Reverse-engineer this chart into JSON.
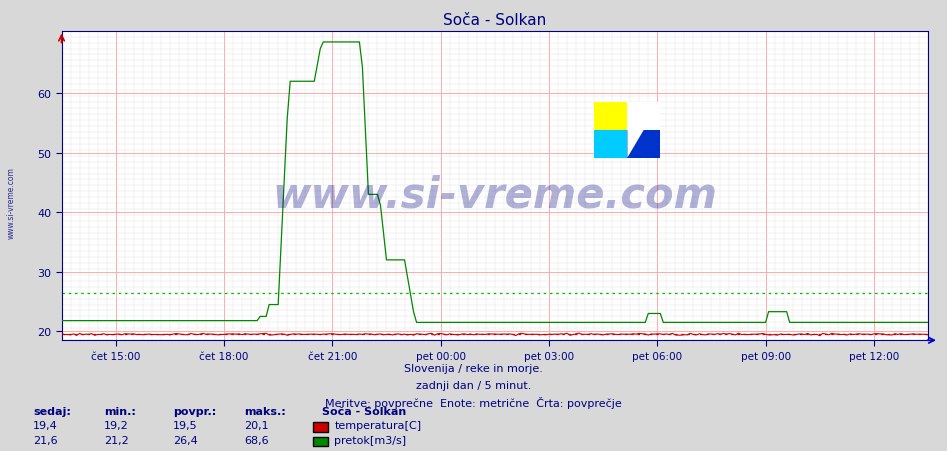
{
  "title": "Soča - Solkan",
  "title_color": "#000080",
  "background_color": "#d8d8d8",
  "plot_bg_color": "#ffffff",
  "x_labels": [
    "čet 15:00",
    "čet 18:00",
    "čet 21:00",
    "pet 00:00",
    "pet 03:00",
    "pet 06:00",
    "pet 09:00",
    "pet 12:00"
  ],
  "ylim_min": 18.5,
  "ylim_max": 70.5,
  "yticks": [
    20,
    30,
    40,
    50,
    60
  ],
  "tick_color": "#000080",
  "temp_color": "#cc0000",
  "flow_color": "#008800",
  "avg_flow_color": "#00bb00",
  "avg_temp_color": "#cc0000",
  "watermark_text": "www.si-vreme.com",
  "watermark_color": "#000080",
  "watermark_alpha": 0.3,
  "subtitle1": "Slovenija / reke in morje.",
  "subtitle2": "zadnji dan / 5 minut.",
  "subtitle3": "Meritve: povprečne  Enote: metrične  Črta: povprečje",
  "subtitle_color": "#000080",
  "left_label": "www.si-vreme.com",
  "left_label_color": "#000080",
  "legend_title": "Soča - Solkan",
  "legend_items": [
    "temperatura[C]",
    "pretok[m3/s]"
  ],
  "legend_colors": [
    "#cc0000",
    "#008800"
  ],
  "stats_headers": [
    "sedaj:",
    "min.:",
    "povpr.:",
    "maks.:"
  ],
  "temp_stats": [
    "19,4",
    "19,2",
    "19,5",
    "20,1"
  ],
  "flow_stats": [
    "21,6",
    "21,2",
    "26,4",
    "68,6"
  ],
  "avg_flow": 26.4,
  "avg_temp": 19.5,
  "flow_base": 21.8,
  "flow_peak": 68.6,
  "flow_step1": 62.0,
  "flow_after_peak": 21.5
}
